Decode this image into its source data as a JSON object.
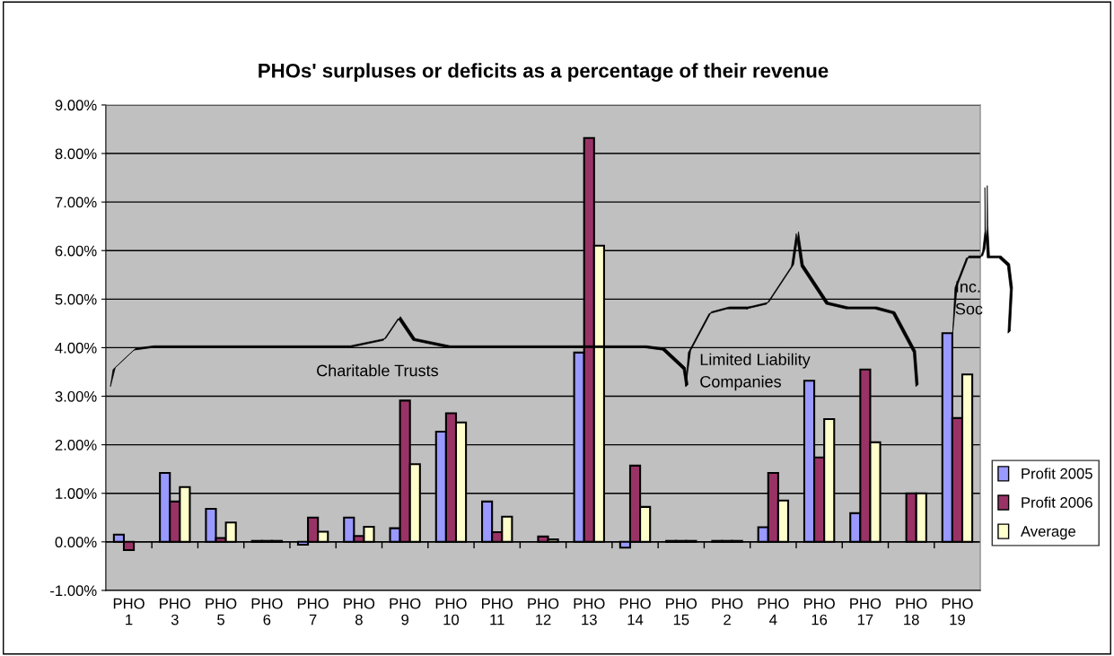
{
  "chart_data": {
    "type": "bar",
    "title": "PHOs' surpluses or deficits as a percentage of their revenue",
    "categories": [
      "PHO\n1",
      "PHO\n3",
      "PHO\n5",
      "PHO\n6",
      "PHO\n7",
      "PHO\n8",
      "PHO\n9",
      "PHO\n10",
      "PHO\n11",
      "PHO\n12",
      "PHO\n13",
      "PHO\n14",
      "PHO\n15",
      "PHO\n2",
      "PHO\n4",
      "PHO\n16",
      "PHO\n17",
      "PHO\n18",
      "PHO\n19"
    ],
    "series": [
      {
        "name": "Profit 2005",
        "color": "#9999ff",
        "values": [
          0.15,
          1.42,
          0.68,
          0.02,
          -0.06,
          0.5,
          0.28,
          2.27,
          0.83,
          null,
          3.9,
          -0.12,
          0.02,
          0.02,
          0.3,
          3.32,
          0.59,
          null,
          4.3
        ]
      },
      {
        "name": "Profit 2006",
        "color": "#993366",
        "values": [
          -0.17,
          0.83,
          0.08,
          0.02,
          0.5,
          0.12,
          2.91,
          2.65,
          0.2,
          0.11,
          8.32,
          1.57,
          0.02,
          0.02,
          1.42,
          1.74,
          3.55,
          1.0,
          2.55
        ]
      },
      {
        "name": "Average",
        "color": "#ffffcc",
        "values": [
          null,
          1.13,
          0.4,
          0.02,
          0.21,
          0.31,
          1.6,
          2.46,
          0.52,
          0.05,
          6.1,
          0.72,
          0.02,
          0.02,
          0.85,
          2.53,
          2.05,
          1.0,
          3.45
        ]
      }
    ],
    "ylim": [
      -1,
      9
    ],
    "yticks": [
      {
        "value": -1,
        "label": "-1.00%"
      },
      {
        "value": 0,
        "label": "0.00%"
      },
      {
        "value": 1,
        "label": "1.00%"
      },
      {
        "value": 2,
        "label": "2.00%"
      },
      {
        "value": 3,
        "label": "3.00%"
      },
      {
        "value": 4,
        "label": "4.00%"
      },
      {
        "value": 5,
        "label": "5.00%"
      },
      {
        "value": 6,
        "label": "6.00%"
      },
      {
        "value": 7,
        "label": "7.00%"
      },
      {
        "value": 8,
        "label": "8.00%"
      },
      {
        "value": 9,
        "label": "9.00%"
      }
    ],
    "grid": "y",
    "legend": "right",
    "annotations": [
      "Charitable Trusts",
      "Limited Liability\nCompanies",
      "Inc.\nSoc"
    ]
  }
}
